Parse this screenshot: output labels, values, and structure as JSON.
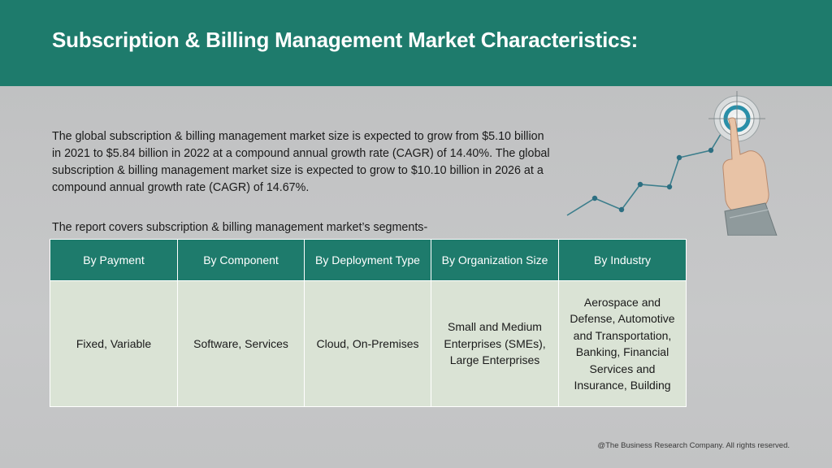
{
  "header": {
    "title": "Subscription & Billing Management Market Characteristics:"
  },
  "intro": {
    "paragraph": "The global subscription & billing management market size is expected to grow from $5.10 billion in 2021 to $5.84 billion in 2022 at a compound annual growth rate (CAGR) of 14.40%. The global subscription & billing management market size is expected to grow to $10.10 billion in 2026 at a compound annual growth rate (CAGR) of 14.67%."
  },
  "segments": {
    "title": "The report covers subscription & billing management market’s segments-",
    "columns": [
      {
        "header": "By Payment",
        "value": "Fixed, Variable"
      },
      {
        "header": "By Component",
        "value": "Software, Services"
      },
      {
        "header": "By Deployment Type",
        "value": "Cloud, On-Premises"
      },
      {
        "header": "By Organization Size",
        "value": "Small and Medium Enterprises (SMEs), Large Enterprises"
      },
      {
        "header": "By Industry",
        "value": "Aerospace and Defense, Automotive and Transportation, Banking, Financial Services and Insurance, Building"
      }
    ]
  },
  "illustration": {
    "icon": "growth-line-target-hand-icon",
    "accent": "#2a8fa8"
  },
  "footer": {
    "copyright": "@The Business Research Company. All rights reserved."
  }
}
